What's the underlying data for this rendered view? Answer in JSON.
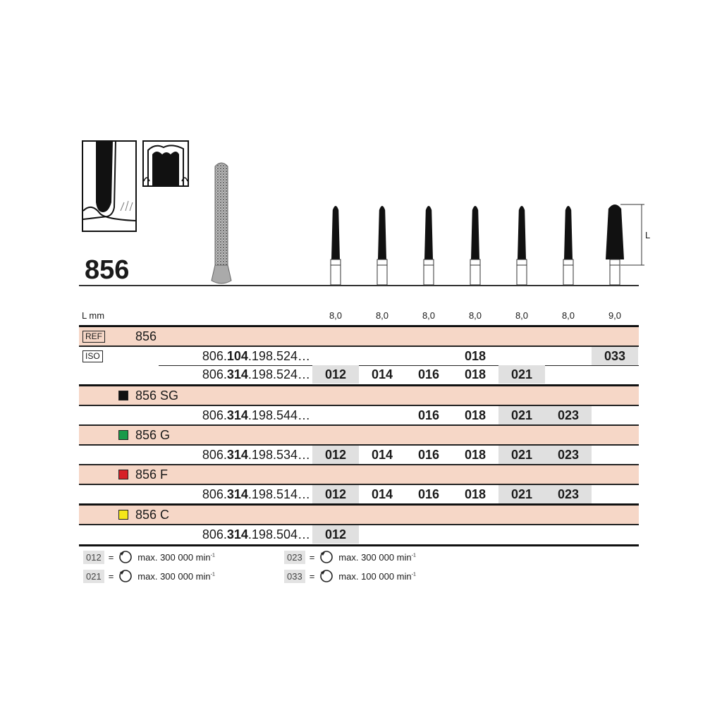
{
  "title": "856",
  "header": {
    "lmm_label": "L mm",
    "lengths": [
      "8,0",
      "8,0",
      "8,0",
      "8,0",
      "8,0",
      "8,0",
      "9,0"
    ],
    "dimension_label": "L"
  },
  "rows": [
    {
      "type": "band",
      "badge": "REF",
      "label": "856",
      "border": "bt3"
    },
    {
      "type": "data",
      "badge": "ISO",
      "code_pre": "806.",
      "code_bold": "104",
      "code_post": ".198.524…",
      "values": [
        "",
        "",
        "",
        "018",
        "",
        "",
        "033"
      ],
      "border": "bt2"
    },
    {
      "type": "data",
      "code_pre": "806.",
      "code_bold": "314",
      "code_post": ".198.524…",
      "values": [
        "012",
        "014",
        "016",
        "018",
        "021",
        "",
        ""
      ],
      "border": "thin"
    },
    {
      "type": "band",
      "color": "#111111",
      "label": "856 SG",
      "border": "bt3"
    },
    {
      "type": "data",
      "code_pre": "806.",
      "code_bold": "314",
      "code_post": ".198.544…",
      "values": [
        "",
        "",
        "016",
        "018",
        "021",
        "023",
        ""
      ],
      "border": "bt2"
    },
    {
      "type": "band",
      "color": "#1a9a4a",
      "label": "856 G",
      "border": "bt2"
    },
    {
      "type": "data",
      "code_pre": "806.",
      "code_bold": "314",
      "code_post": ".198.534…",
      "values": [
        "012",
        "014",
        "016",
        "018",
        "021",
        "023",
        ""
      ],
      "border": "bt2"
    },
    {
      "type": "band",
      "color": "#d71f26",
      "label": "856 F",
      "border": "bt2"
    },
    {
      "type": "data",
      "code_pre": "806.",
      "code_bold": "314",
      "code_post": ".198.514…",
      "values": [
        "012",
        "014",
        "016",
        "018",
        "021",
        "023",
        ""
      ],
      "border": "bt2"
    },
    {
      "type": "band",
      "color": "#f5e71a",
      "label": "856 C",
      "border": "bt3"
    },
    {
      "type": "data",
      "code_pre": "806.",
      "code_bold": "314",
      "code_post": ".198.504…",
      "values": [
        "012",
        "",
        "",
        "",
        "",
        "",
        ""
      ],
      "border": "bt2"
    }
  ],
  "legend": [
    {
      "code": "012",
      "eq": "=",
      "text": "max. 300 000 min",
      "exp": "-1"
    },
    {
      "code": "023",
      "eq": "=",
      "text": "max. 300 000 min",
      "exp": "-1"
    },
    {
      "code": "021",
      "eq": "=",
      "text": "max. 300 000 min",
      "exp": "-1"
    },
    {
      "code": "033",
      "eq": "=",
      "text": "max. 100 000 min",
      "exp": "-1"
    }
  ],
  "colors": {
    "band": "#f6d7c7",
    "highlight": "#e0e0e0"
  }
}
